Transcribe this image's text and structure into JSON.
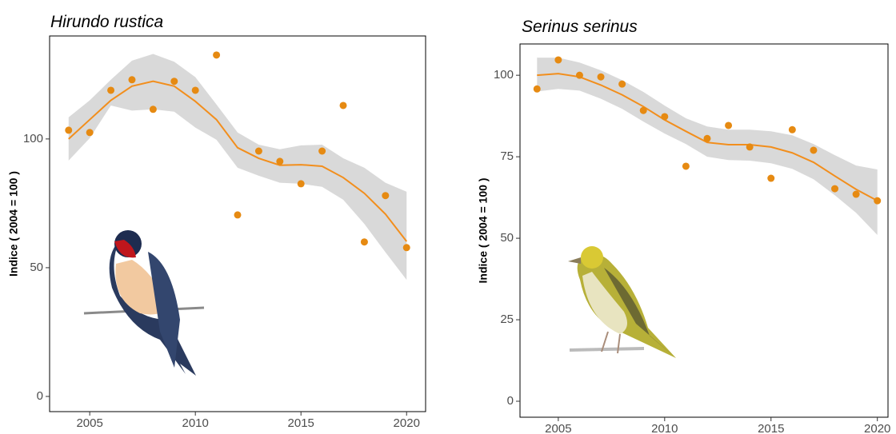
{
  "chart_data": [
    {
      "type": "scatter",
      "title": "Hirundo rustica",
      "y_label": "Indice ( 2004 = 100 )",
      "x": [
        2004,
        2005,
        2006,
        2007,
        2008,
        2009,
        2010,
        2011,
        2012,
        2013,
        2014,
        2015,
        2016,
        2017,
        2018,
        2019,
        2020
      ],
      "values": [
        103.4,
        102.5,
        118.9,
        123,
        111.5,
        122.4,
        118.9,
        132.6,
        70.5,
        95.3,
        91.3,
        82.6,
        95.3,
        113,
        60,
        78,
        57.8
      ],
      "trend": [
        100,
        107.5,
        115,
        120.5,
        122.4,
        120.5,
        114.6,
        107.5,
        96.6,
        92.5,
        89.8,
        90,
        89.4,
        85,
        78.9,
        70.8,
        60.2
      ],
      "ci_upper": [
        108.4,
        115,
        123,
        130.4,
        133,
        130,
        124,
        113.4,
        102.5,
        97.8,
        96,
        97.5,
        97.8,
        92.5,
        88.8,
        83,
        79.5
      ],
      "ci_lower": [
        91.6,
        100.3,
        113,
        111,
        111.5,
        110.6,
        104.4,
        99.7,
        88.8,
        85.7,
        83,
        82.6,
        81.4,
        76.4,
        67,
        56,
        45.3
      ],
      "color": "#e68a12",
      "trend_color": "#f28e1c",
      "band_color": "#d9d9d9",
      "xlim": [
        2003.1,
        2020.9
      ],
      "ylim": [
        -5.9,
        140
      ],
      "xticks": [
        2005,
        2010,
        2015,
        2020
      ],
      "yticks": [
        0,
        50,
        100
      ]
    },
    {
      "type": "scatter",
      "title": "Serinus serinus",
      "y_label": "Indice ( 2004 = 100 )",
      "x": [
        2004,
        2005,
        2006,
        2007,
        2008,
        2009,
        2010,
        2011,
        2012,
        2013,
        2014,
        2015,
        2016,
        2017,
        2018,
        2019,
        2020
      ],
      "values": [
        95.8,
        104.7,
        100,
        99.5,
        97.3,
        89.2,
        87.3,
        72.1,
        80.6,
        84.6,
        78,
        68.4,
        83.3,
        77,
        65.2,
        63.5,
        61.5
      ],
      "trend": [
        100,
        100.5,
        99.5,
        97,
        94,
        90.4,
        86.3,
        82.8,
        79.4,
        78.7,
        78.7,
        78,
        76.2,
        73.3,
        69.1,
        65,
        61.5
      ],
      "ci_upper": [
        105.4,
        105.4,
        103.9,
        101.5,
        98.5,
        94.9,
        90.7,
        86.8,
        84.3,
        83.3,
        83.3,
        82.8,
        81.6,
        78.9,
        75.5,
        72.3,
        71.1
      ],
      "ci_lower": [
        95,
        95.8,
        95.3,
        92.8,
        89.7,
        85.8,
        82.1,
        78.9,
        75,
        74,
        73.8,
        73,
        71.3,
        68.1,
        63.2,
        57.8,
        51
      ],
      "color": "#e68a12",
      "trend_color": "#f28e1c",
      "band_color": "#d9d9d9",
      "xlim": [
        2003.2,
        2020.5
      ],
      "ylim": [
        -4.9,
        109.6
      ],
      "xticks": [
        2005,
        2010,
        2015,
        2020
      ],
      "yticks": [
        0,
        25,
        50,
        75,
        100
      ]
    }
  ]
}
